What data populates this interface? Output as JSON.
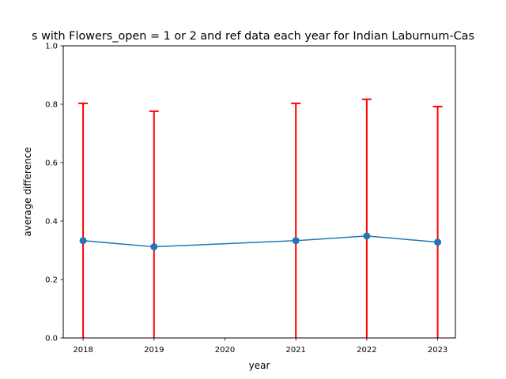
{
  "chart_data": {
    "type": "line",
    "title": "s with Flowers_open = 1 or 2 and ref data each year for Indian Laburnum-Cas",
    "xlabel": "year",
    "ylabel": "average difference",
    "xlim": [
      2017.72,
      2023.25
    ],
    "ylim": [
      0.0,
      1.0
    ],
    "x_ticks": [
      2018,
      2019,
      2020,
      2021,
      2022,
      2023
    ],
    "y_ticks": [
      0.0,
      0.2,
      0.4,
      0.6,
      0.8,
      1.0
    ],
    "x_tick_labels": [
      "2018",
      "2019",
      "2020",
      "2021",
      "2022",
      "2023"
    ],
    "y_tick_labels": [
      "0.0",
      "0.2",
      "0.4",
      "0.6",
      "0.8",
      "1.0"
    ],
    "grid": false,
    "series": [
      {
        "x": [
          2018,
          2019,
          2021,
          2022,
          2023
        ],
        "y": [
          0.333,
          0.312,
          0.333,
          0.349,
          0.328
        ],
        "yerr_upper": [
          0.803,
          0.776,
          0.803,
          0.817,
          0.792
        ],
        "yerr_lower": [
          0.0,
          0.0,
          0.0,
          0.0,
          0.0
        ],
        "line_color": "#1f77b4",
        "marker": "circle",
        "errorbar_color": "#ff0000"
      }
    ]
  }
}
